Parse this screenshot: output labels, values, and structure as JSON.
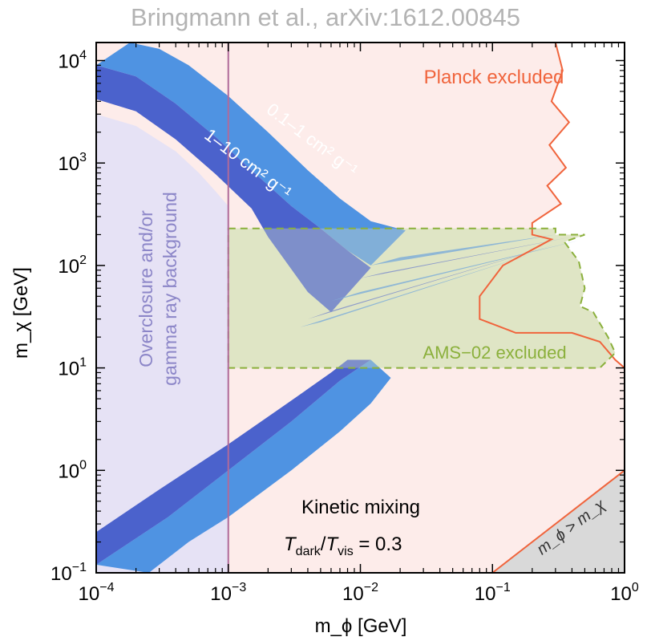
{
  "title": "Bringmann et al., arXiv:1612.00845",
  "chart_data": {
    "type": "area",
    "title": "Bringmann et al., arXiv:1612.00845",
    "xlabel": "m_ϕ [GeV]",
    "ylabel": "m_χ [GeV]",
    "x_scale": "log",
    "y_scale": "log",
    "xlim": [
      0.0001,
      1
    ],
    "ylim": [
      0.1,
      15000
    ],
    "x_ticks": [
      {
        "value": 0.0001,
        "base": "10",
        "exp": "−4"
      },
      {
        "value": 0.001,
        "base": "10",
        "exp": "−3"
      },
      {
        "value": 0.01,
        "base": "10",
        "exp": "−2"
      },
      {
        "value": 0.1,
        "base": "10",
        "exp": "−1"
      },
      {
        "value": 1,
        "base": "10",
        "exp": "0"
      }
    ],
    "y_ticks": [
      {
        "value": 0.1,
        "base": "10",
        "exp": "−1"
      },
      {
        "value": 1,
        "base": "10",
        "exp": "0"
      },
      {
        "value": 10,
        "base": "10",
        "exp": "1"
      },
      {
        "value": 100,
        "base": "10",
        "exp": "2"
      },
      {
        "value": 1000,
        "base": "10",
        "exp": "3"
      },
      {
        "value": 10000,
        "base": "10",
        "exp": "4"
      }
    ],
    "regions": [
      {
        "name": "Planck excluded",
        "color": "#f0643c",
        "fill": "#fdecea",
        "boundary": [
          [
            0.3,
            15000
          ],
          [
            0.34,
            8000
          ],
          [
            0.28,
            4000
          ],
          [
            0.38,
            2500
          ],
          [
            0.27,
            1500
          ],
          [
            0.36,
            900
          ],
          [
            0.26,
            600
          ],
          [
            0.33,
            400
          ],
          [
            0.2,
            260
          ],
          [
            0.2,
            200
          ],
          [
            0.28,
            180
          ],
          [
            0.12,
            100
          ],
          [
            0.08,
            50
          ],
          [
            0.08,
            30
          ],
          [
            0.15,
            22
          ],
          [
            0.4,
            22
          ],
          [
            0.65,
            18
          ],
          [
            0.85,
            12
          ],
          [
            1,
            10
          ]
        ]
      },
      {
        "name": "AMS−02 excluded",
        "color": "#8bb03c",
        "fill": "#dfe5c5",
        "boundary": [
          [
            0.001,
            230
          ],
          [
            0.3,
            230
          ],
          [
            0.3,
            200
          ],
          [
            0.5,
            200
          ],
          [
            0.35,
            170
          ],
          [
            0.45,
            110
          ],
          [
            0.5,
            60
          ],
          [
            0.46,
            40
          ],
          [
            0.58,
            35
          ],
          [
            0.75,
            20
          ],
          [
            0.85,
            14
          ],
          [
            0.65,
            10
          ],
          [
            0.001,
            10
          ]
        ]
      },
      {
        "name": "Overclosure and/or gamma ray background",
        "fill": "#e6e2f5",
        "boundary": [
          [
            0.0001,
            3000
          ],
          [
            0.0002,
            2300
          ],
          [
            0.0004,
            1300
          ],
          [
            0.0006,
            800
          ],
          [
            0.0008,
            530
          ],
          [
            0.001,
            380
          ],
          [
            0.001,
            0.1
          ],
          [
            0.0001,
            0.1
          ]
        ]
      },
      {
        "name": "m_ϕ > m_χ",
        "fill": "#d9d9d9",
        "boundary": [
          [
            0.1,
            0.1
          ],
          [
            1,
            1
          ],
          [
            1,
            0.1
          ]
        ]
      }
    ],
    "bands": [
      {
        "name": "0.1–1 cm² g⁻¹",
        "color": "#4f93e2",
        "upper": [
          [
            0.00018,
            15000
          ],
          [
            0.0003,
            13000
          ],
          [
            0.0005,
            9000
          ],
          [
            0.001,
            4500
          ],
          [
            0.002,
            2000
          ],
          [
            0.004,
            850
          ],
          [
            0.007,
            450
          ],
          [
            0.012,
            270
          ],
          [
            0.022,
            220
          ]
        ],
        "lower": [
          [
            0.0001,
            9000
          ],
          [
            0.0002,
            7000
          ],
          [
            0.0004,
            3800
          ],
          [
            0.0008,
            1800
          ],
          [
            0.0015,
            850
          ],
          [
            0.003,
            380
          ],
          [
            0.005,
            230
          ],
          [
            0.008,
            140
          ],
          [
            0.012,
            100
          ]
        ],
        "low_branch_upper": [
          [
            0.0001,
            0.12
          ],
          [
            0.00035,
            0.35
          ],
          [
            0.001,
            1
          ],
          [
            0.003,
            3
          ],
          [
            0.007,
            7.5
          ],
          [
            0.012,
            12
          ]
        ],
        "low_branch_lower": [
          [
            0.00025,
            0.1
          ],
          [
            0.0005,
            0.2
          ],
          [
            0.001,
            0.35
          ],
          [
            0.003,
            1
          ],
          [
            0.007,
            2.4
          ],
          [
            0.012,
            4.5
          ],
          [
            0.017,
            8
          ]
        ]
      },
      {
        "name": "1–10 cm² g⁻¹",
        "color": "#4b62cc",
        "upper": [
          [
            0.0001,
            9000
          ],
          [
            0.0002,
            7000
          ],
          [
            0.0004,
            3800
          ],
          [
            0.0008,
            1800
          ],
          [
            0.0015,
            850
          ],
          [
            0.003,
            380
          ],
          [
            0.005,
            230
          ],
          [
            0.008,
            140
          ],
          [
            0.012,
            95
          ]
        ],
        "lower": [
          [
            0.0001,
            4200
          ],
          [
            0.0002,
            3200
          ],
          [
            0.0004,
            1700
          ],
          [
            0.0008,
            780
          ],
          [
            0.0015,
            360
          ],
          [
            0.002,
            190
          ],
          [
            0.004,
            55
          ],
          [
            0.006,
            35
          ]
        ],
        "low_branch_upper": [
          [
            0.0001,
            0.25
          ],
          [
            0.0003,
            0.65
          ],
          [
            0.001,
            1.8
          ],
          [
            0.003,
            4.8
          ],
          [
            0.006,
            9
          ],
          [
            0.008,
            12
          ]
        ],
        "low_branch_lower": [
          [
            0.0001,
            0.12
          ],
          [
            0.00035,
            0.35
          ],
          [
            0.001,
            1
          ],
          [
            0.003,
            3
          ],
          [
            0.007,
            7.5
          ],
          [
            0.012,
            12
          ]
        ]
      }
    ],
    "annotations": {
      "planck": "Planck excluded",
      "ams": "AMS−02 excluded",
      "overclosure_line1": "Overclosure and/or",
      "overclosure_line2": "gamma ray background",
      "band_light": "0.1–1 cm² g⁻¹",
      "band_dark": "1–10 cm² g⁻¹",
      "kinetic": "Kinetic mixing",
      "ratio_value": "= 0.3",
      "ratio_T1": "T",
      "ratio_sub1": "dark",
      "ratio_T2": "T",
      "ratio_sub2": "vis",
      "mphi_gt_mchi": "m_ϕ > m_χ"
    },
    "vertical_line": {
      "x": 0.001,
      "color": "#b06b9a"
    }
  }
}
